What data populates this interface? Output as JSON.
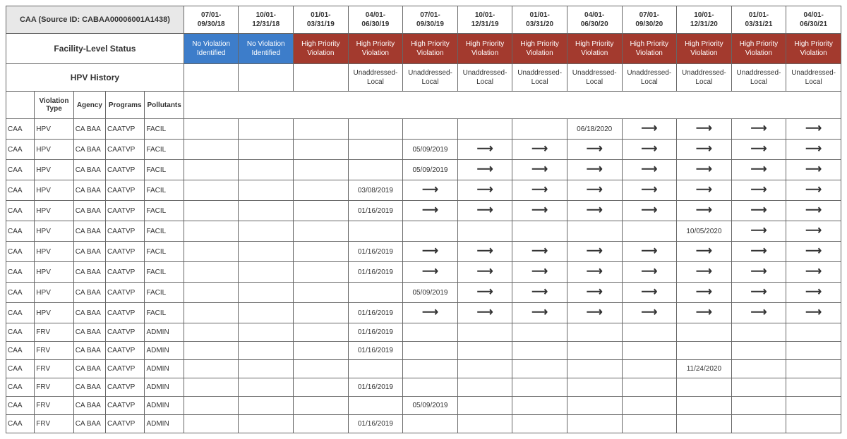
{
  "header": {
    "source_label": "CAA (Source ID: CABAA00006001A1438)",
    "facility_level_status": "Facility-Level Status",
    "hpv_history": "HPV History"
  },
  "periods": [
    "07/01-\n09/30/18",
    "10/01-\n12/31/18",
    "01/01-\n03/31/19",
    "04/01-\n06/30/19",
    "07/01-\n09/30/19",
    "10/01-\n12/31/19",
    "01/01-\n03/31/20",
    "04/01-\n06/30/20",
    "07/01-\n09/30/20",
    "10/01-\n12/31/20",
    "01/01-\n03/31/21",
    "04/01-\n06/30/21"
  ],
  "status_row": [
    {
      "text": "No Violation Identified",
      "cls": "novi"
    },
    {
      "text": "No Violation Identified",
      "cls": "novi"
    },
    {
      "text": "High Priority Violation",
      "cls": "hpv"
    },
    {
      "text": "High Priority Violation",
      "cls": "hpv"
    },
    {
      "text": "High Priority Violation",
      "cls": "hpv"
    },
    {
      "text": "High Priority Violation",
      "cls": "hpv"
    },
    {
      "text": "High Priority Violation",
      "cls": "hpv"
    },
    {
      "text": "High Priority Violation",
      "cls": "hpv"
    },
    {
      "text": "High Priority Violation",
      "cls": "hpv"
    },
    {
      "text": "High Priority Violation",
      "cls": "hpv"
    },
    {
      "text": "High Priority Violation",
      "cls": "hpv"
    },
    {
      "text": "High Priority Violation",
      "cls": "hpv"
    }
  ],
  "hpv_history_row": [
    "",
    "",
    "",
    "Unaddressed-Local",
    "Unaddressed-Local",
    "Unaddressed-Local",
    "Unaddressed-Local",
    "Unaddressed-Local",
    "Unaddressed-Local",
    "Unaddressed-Local",
    "Unaddressed-Local",
    "Unaddressed-Local"
  ],
  "sub_headers": [
    "",
    "Violation Type",
    "Agency",
    "Programs",
    "Pollutants"
  ],
  "rows": [
    {
      "meta": [
        "CAA",
        "HPV",
        "CA BAA",
        "CAATVP",
        "FACIL"
      ],
      "cells": [
        "",
        "",
        "",
        "",
        "",
        "",
        "",
        "06/18/2020",
        "→",
        "→",
        "→",
        "→"
      ]
    },
    {
      "meta": [
        "CAA",
        "HPV",
        "CA BAA",
        "CAATVP",
        "FACIL"
      ],
      "cells": [
        "",
        "",
        "",
        "",
        "05/09/2019",
        "→",
        "→",
        "→",
        "→",
        "→",
        "→",
        "→"
      ]
    },
    {
      "meta": [
        "CAA",
        "HPV",
        "CA BAA",
        "CAATVP",
        "FACIL"
      ],
      "cells": [
        "",
        "",
        "",
        "",
        "05/09/2019",
        "→",
        "→",
        "→",
        "→",
        "→",
        "→",
        "→"
      ]
    },
    {
      "meta": [
        "CAA",
        "HPV",
        "CA BAA",
        "CAATVP",
        "FACIL"
      ],
      "cells": [
        "",
        "",
        "",
        "03/08/2019",
        "→",
        "→",
        "→",
        "→",
        "→",
        "→",
        "→",
        "→"
      ]
    },
    {
      "meta": [
        "CAA",
        "HPV",
        "CA BAA",
        "CAATVP",
        "FACIL"
      ],
      "cells": [
        "",
        "",
        "",
        "01/16/2019",
        "→",
        "→",
        "→",
        "→",
        "→",
        "→",
        "→",
        "→"
      ]
    },
    {
      "meta": [
        "CAA",
        "HPV",
        "CA BAA",
        "CAATVP",
        "FACIL"
      ],
      "cells": [
        "",
        "",
        "",
        "",
        "",
        "",
        "",
        "",
        "",
        "10/05/2020",
        "→",
        "→"
      ]
    },
    {
      "meta": [
        "CAA",
        "HPV",
        "CA BAA",
        "CAATVP",
        "FACIL"
      ],
      "cells": [
        "",
        "",
        "",
        "01/16/2019",
        "→",
        "→",
        "→",
        "→",
        "→",
        "→",
        "→",
        "→"
      ]
    },
    {
      "meta": [
        "CAA",
        "HPV",
        "CA BAA",
        "CAATVP",
        "FACIL"
      ],
      "cells": [
        "",
        "",
        "",
        "01/16/2019",
        "→",
        "→",
        "→",
        "→",
        "→",
        "→",
        "→",
        "→"
      ]
    },
    {
      "meta": [
        "CAA",
        "HPV",
        "CA BAA",
        "CAATVP",
        "FACIL"
      ],
      "cells": [
        "",
        "",
        "",
        "",
        "05/09/2019",
        "→",
        "→",
        "→",
        "→",
        "→",
        "→",
        "→"
      ]
    },
    {
      "meta": [
        "CAA",
        "HPV",
        "CA BAA",
        "CAATVP",
        "FACIL"
      ],
      "cells": [
        "",
        "",
        "",
        "01/16/2019",
        "→",
        "→",
        "→",
        "→",
        "→",
        "→",
        "→",
        "→"
      ]
    },
    {
      "meta": [
        "CAA",
        "FRV",
        "CA BAA",
        "CAATVP",
        "ADMIN"
      ],
      "cells": [
        "",
        "",
        "",
        "01/16/2019",
        "",
        "",
        "",
        "",
        "",
        "",
        "",
        ""
      ]
    },
    {
      "meta": [
        "CAA",
        "FRV",
        "CA BAA",
        "CAATVP",
        "ADMIN"
      ],
      "cells": [
        "",
        "",
        "",
        "01/16/2019",
        "",
        "",
        "",
        "",
        "",
        "",
        "",
        ""
      ]
    },
    {
      "meta": [
        "CAA",
        "FRV",
        "CA BAA",
        "CAATVP",
        "ADMIN"
      ],
      "cells": [
        "",
        "",
        "",
        "",
        "",
        "",
        "",
        "",
        "",
        "11/24/2020",
        "",
        ""
      ]
    },
    {
      "meta": [
        "CAA",
        "FRV",
        "CA BAA",
        "CAATVP",
        "ADMIN"
      ],
      "cells": [
        "",
        "",
        "",
        "01/16/2019",
        "",
        "",
        "",
        "",
        "",
        "",
        "",
        ""
      ]
    },
    {
      "meta": [
        "CAA",
        "FRV",
        "CA BAA",
        "CAATVP",
        "ADMIN"
      ],
      "cells": [
        "",
        "",
        "",
        "",
        "05/09/2019",
        "",
        "",
        "",
        "",
        "",
        "",
        ""
      ]
    },
    {
      "meta": [
        "CAA",
        "FRV",
        "CA BAA",
        "CAATVP",
        "ADMIN"
      ],
      "cells": [
        "",
        "",
        "",
        "01/16/2019",
        "",
        "",
        "",
        "",
        "",
        "",
        "",
        ""
      ]
    }
  ],
  "colors": {
    "no_violation_bg": "#3d7dca",
    "hpv_bg": "#a33a2e",
    "header_bg": "#e8e8e8",
    "border": "#666666",
    "text": "#333333"
  }
}
